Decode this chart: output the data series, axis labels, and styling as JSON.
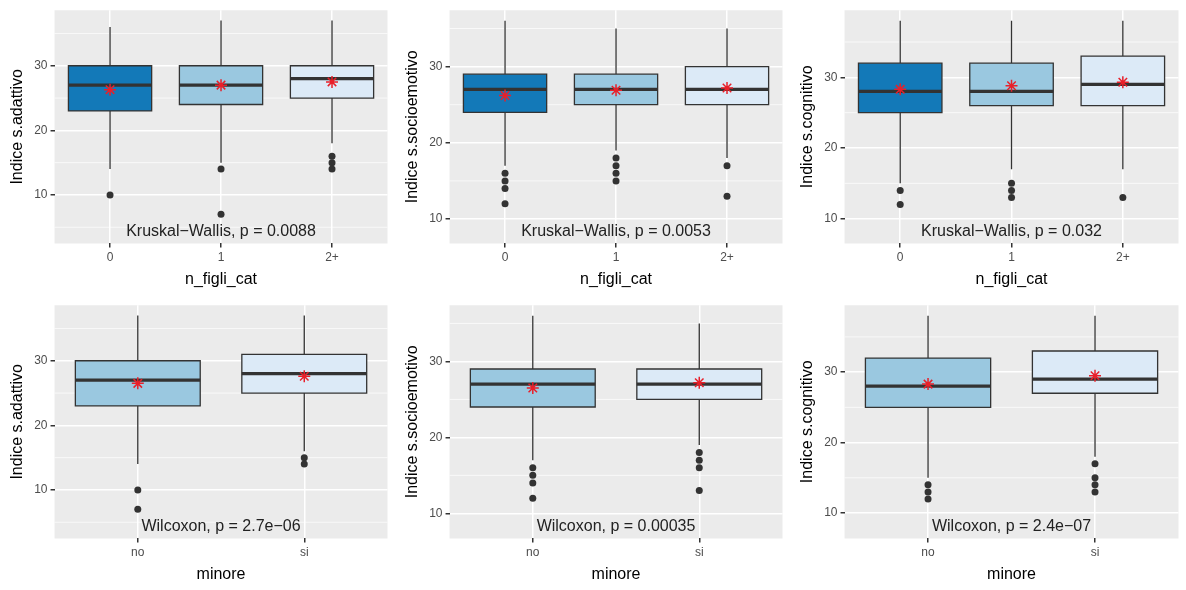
{
  "chart_data": [
    {
      "type": "box",
      "xlabel": "n_figli_cat",
      "ylabel": "Indice s.adattivo",
      "categories": [
        "0",
        "1",
        "2+"
      ],
      "colors": [
        "#1379b8",
        "#9ac8e0",
        "#dceaf7"
      ],
      "boxes": [
        {
          "low": 14,
          "q1": 23,
          "median": 27,
          "q3": 30,
          "high": 36,
          "mean": 26.3,
          "outliers": [
            10
          ]
        },
        {
          "low": 15,
          "q1": 24,
          "median": 27,
          "q3": 30,
          "high": 37,
          "mean": 27,
          "outliers": [
            14,
            7
          ]
        },
        {
          "low": 18,
          "q1": 25,
          "median": 28,
          "q3": 30,
          "high": 37,
          "mean": 27.5,
          "outliers": [
            16,
            15,
            14
          ]
        }
      ],
      "ylim": [
        2.5,
        38.6
      ],
      "yticks": [
        10,
        20,
        30
      ],
      "grid": true,
      "annotations": [
        "Kruskal−Wallis, p = 0.0088"
      ]
    },
    {
      "type": "box",
      "xlabel": "n_figli_cat",
      "ylabel": "Indice s.socioemotivo",
      "categories": [
        "0",
        "1",
        "2+"
      ],
      "colors": [
        "#1379b8",
        "#9ac8e0",
        "#dceaf7"
      ],
      "boxes": [
        {
          "low": 17,
          "q1": 24,
          "median": 27,
          "q3": 29,
          "high": 36,
          "mean": 26.2,
          "outliers": [
            16,
            15,
            14,
            12
          ]
        },
        {
          "low": 19,
          "q1": 25,
          "median": 27,
          "q3": 29,
          "high": 35,
          "mean": 26.9,
          "outliers": [
            18,
            17,
            16,
            15
          ]
        },
        {
          "low": 18,
          "q1": 25,
          "median": 27,
          "q3": 30,
          "high": 35,
          "mean": 27.2,
          "outliers": [
            17,
            13
          ]
        }
      ],
      "ylim": [
        6.8,
        37.4
      ],
      "yticks": [
        10,
        20,
        30
      ],
      "grid": true,
      "annotations": [
        "Kruskal−Wallis, p = 0.0053"
      ]
    },
    {
      "type": "box",
      "xlabel": "n_figli_cat",
      "ylabel": "Indice s.cognitivo",
      "categories": [
        "0",
        "1",
        "2+"
      ],
      "colors": [
        "#1379b8",
        "#9ac8e0",
        "#dceaf7"
      ],
      "boxes": [
        {
          "low": 15,
          "q1": 25,
          "median": 28,
          "q3": 32,
          "high": 38,
          "mean": 28.3,
          "outliers": [
            14,
            12
          ]
        },
        {
          "low": 17,
          "q1": 26,
          "median": 28,
          "q3": 32,
          "high": 38,
          "mean": 28.8,
          "outliers": [
            15,
            14,
            13
          ]
        },
        {
          "low": 17,
          "q1": 26,
          "median": 29,
          "q3": 33,
          "high": 38,
          "mean": 29.3,
          "outliers": [
            13
          ]
        }
      ],
      "ylim": [
        6.5,
        39.5
      ],
      "yticks": [
        10,
        20,
        30
      ],
      "grid": true,
      "annotations": [
        "Kruskal−Wallis, p = 0.032"
      ]
    },
    {
      "type": "box",
      "xlabel": "minore",
      "ylabel": "Indice s.adattivo",
      "categories": [
        "no",
        "si"
      ],
      "colors": [
        "#9ac8e0",
        "#dceaf7"
      ],
      "boxes": [
        {
          "low": 14,
          "q1": 23,
          "median": 27,
          "q3": 30,
          "high": 37,
          "mean": 26.5,
          "outliers": [
            10,
            7
          ]
        },
        {
          "low": 16,
          "q1": 25,
          "median": 28,
          "q3": 31,
          "high": 37,
          "mean": 27.6,
          "outliers": [
            15,
            14
          ]
        }
      ],
      "ylim": [
        2.5,
        38.6
      ],
      "yticks": [
        10,
        20,
        30
      ],
      "grid": true,
      "annotations": [
        "Wilcoxon, p = 2.7e−06"
      ]
    },
    {
      "type": "box",
      "xlabel": "minore",
      "ylabel": "Indice s.socioemotivo",
      "categories": [
        "no",
        "si"
      ],
      "colors": [
        "#9ac8e0",
        "#dceaf7"
      ],
      "boxes": [
        {
          "low": 17,
          "q1": 24,
          "median": 27,
          "q3": 29,
          "high": 36,
          "mean": 26.5,
          "outliers": [
            16,
            15,
            14,
            12
          ]
        },
        {
          "low": 19,
          "q1": 25,
          "median": 27,
          "q3": 29,
          "high": 35,
          "mean": 27.2,
          "outliers": [
            18,
            17,
            16,
            13
          ]
        }
      ],
      "ylim": [
        6.7,
        37.4
      ],
      "yticks": [
        10,
        20,
        30
      ],
      "grid": true,
      "annotations": [
        "Wilcoxon, p = 0.00035"
      ]
    },
    {
      "type": "box",
      "xlabel": "minore",
      "ylabel": "Indice s.cognitivo",
      "categories": [
        "no",
        "si"
      ],
      "colors": [
        "#9ac8e0",
        "#dceaf7"
      ],
      "boxes": [
        {
          "low": 15,
          "q1": 25,
          "median": 28,
          "q3": 32,
          "high": 38,
          "mean": 28.3,
          "outliers": [
            14,
            13,
            12
          ]
        },
        {
          "low": 18,
          "q1": 27,
          "median": 29,
          "q3": 33,
          "high": 38,
          "mean": 29.5,
          "outliers": [
            17,
            15,
            14,
            13
          ]
        }
      ],
      "ylim": [
        6.4,
        39.5
      ],
      "yticks": [
        10,
        20,
        30
      ],
      "grid": true,
      "annotations": [
        "Wilcoxon, p = 2.4e−07"
      ]
    }
  ]
}
